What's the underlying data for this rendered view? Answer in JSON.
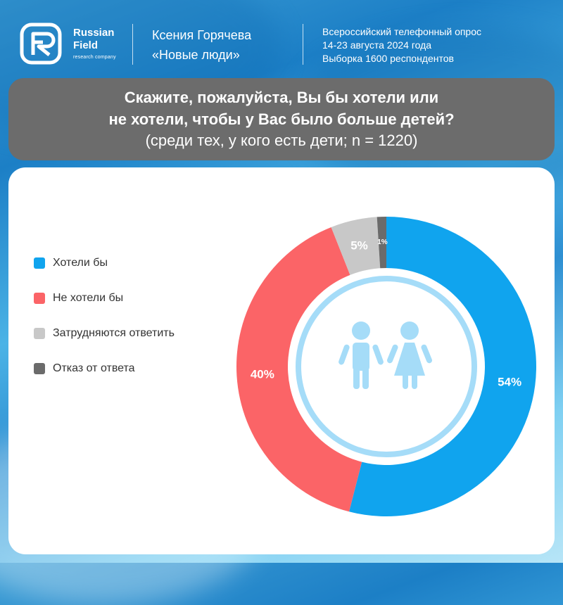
{
  "header": {
    "brand": {
      "line1": "Russian",
      "line2": "Field",
      "sub": "research company"
    },
    "author": {
      "name": "Ксения Горячева",
      "party": "«Новые люди»"
    },
    "survey": {
      "line1": "Всероссийский телефонный опрос",
      "line2": "14-23 августа 2024 года",
      "line3": "Выборка 1600 респондентов"
    }
  },
  "question": {
    "line1": "Скажите, пожалуйста, Вы бы хотели или",
    "line2": "не хотели, чтобы у Вас было больше детей?",
    "subtitle": "(среди тех, у кого есть дети; n = 1220)"
  },
  "chart_data": {
    "type": "pie",
    "variant": "donut",
    "title": "Скажите, пожалуйста, Вы бы хотели или не хотели, чтобы у Вас было больше детей?",
    "subtitle": "(среди тех, у кого есть дети; n = 1220)",
    "categories": [
      "Хотели бы",
      "Не хотели бы",
      "Затрудняются ответить",
      "Отказ от ответа"
    ],
    "values": [
      54,
      40,
      5,
      1
    ],
    "labels": [
      "54%",
      "40%",
      "5%",
      "1%"
    ],
    "colors": [
      "#10a4ee",
      "#fb6467",
      "#c8c8c8",
      "#6b6b6b"
    ],
    "unit": "%",
    "legend_position": "left",
    "start": "top",
    "direction": "clockwise"
  },
  "center_icon": "children-icon",
  "colors": {
    "question_bg": "#6c6c6c",
    "card_bg": "#ffffff",
    "icon": "#a5dcf8"
  }
}
